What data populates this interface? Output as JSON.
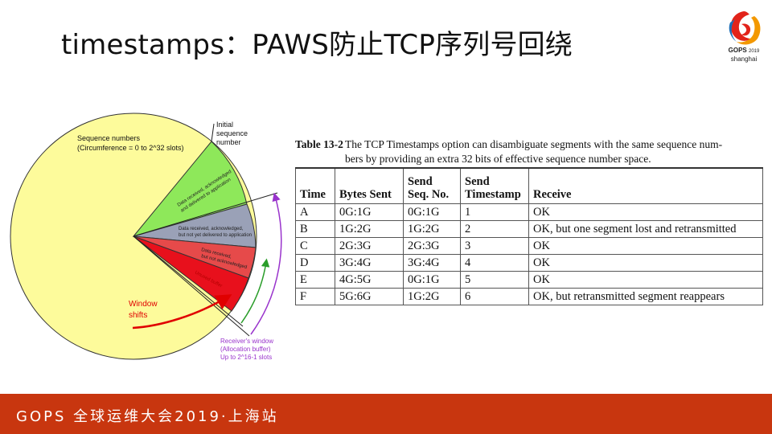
{
  "title": "timestamps：PAWS防止TCP序列号回绕",
  "logo": {
    "brand": "GOPS",
    "year": "2019",
    "city": "shanghai"
  },
  "diagram": {
    "sequence_numbers": "Sequence numbers",
    "circumference": "(Circumference = 0 to 2^32 slots)",
    "initial_seq_1": "Initial",
    "initial_seq_2": "sequence",
    "initial_seq_3": "number",
    "ack_delivered_1": "Data received, acknowledged",
    "ack_delivered_2": "and delivered to application",
    "ack_not_delivered_1": "Data received, acknowledged,",
    "ack_not_delivered_2": "but not yet delivered to application",
    "not_ack_1": "Data received,",
    "not_ack_2": "but not acknowledged",
    "unused_buffer": "Unused buffer",
    "window_shifts_1": "Window",
    "window_shifts_2": "shifts",
    "receiver_window_1": "Receiver's window",
    "receiver_window_2": "(Allocation buffer)",
    "receiver_window_3": "Up to 2^16-1 slots",
    "colors": {
      "circle": "#fdfb9b",
      "acked_delivered": "#8ee85a",
      "acked_not_delivered": "#9aa1b7",
      "not_acked": "#e64a4a",
      "unused": "#e8101c",
      "window_shift": "#e00000",
      "receiver_window": "#9933cc",
      "green_arc": "#2a9d2a"
    }
  },
  "table": {
    "caption_id": "Table 13-2",
    "caption_line1": "The TCP Timestamps option can disambiguate segments with the same sequence num-",
    "caption_line2": "bers by providing an extra 32 bits of effective sequence number space.",
    "headers": [
      "Time",
      "Bytes Sent",
      "Send\nSeq. No.",
      "Send\nTimestamp",
      "Receive"
    ],
    "headers_split": [
      [
        "Time"
      ],
      [
        "Bytes Sent"
      ],
      [
        "Send",
        "Seq. No."
      ],
      [
        "Send",
        "Timestamp"
      ],
      [
        "Receive"
      ]
    ],
    "rows": [
      [
        "A",
        "0G:1G",
        "0G:1G",
        "1",
        "OK"
      ],
      [
        "B",
        "1G:2G",
        "1G:2G",
        "2",
        "OK, but one segment lost and retransmitted"
      ],
      [
        "C",
        "2G:3G",
        "2G:3G",
        "3",
        "OK"
      ],
      [
        "D",
        "3G:4G",
        "3G:4G",
        "4",
        "OK"
      ],
      [
        "E",
        "4G:5G",
        "0G:1G",
        "5",
        "OK"
      ],
      [
        "F",
        "5G:6G",
        "1G:2G",
        "6",
        "OK, but retransmitted segment reappears"
      ]
    ]
  },
  "footer": "GOPS 全球运维大会2019·上海站"
}
